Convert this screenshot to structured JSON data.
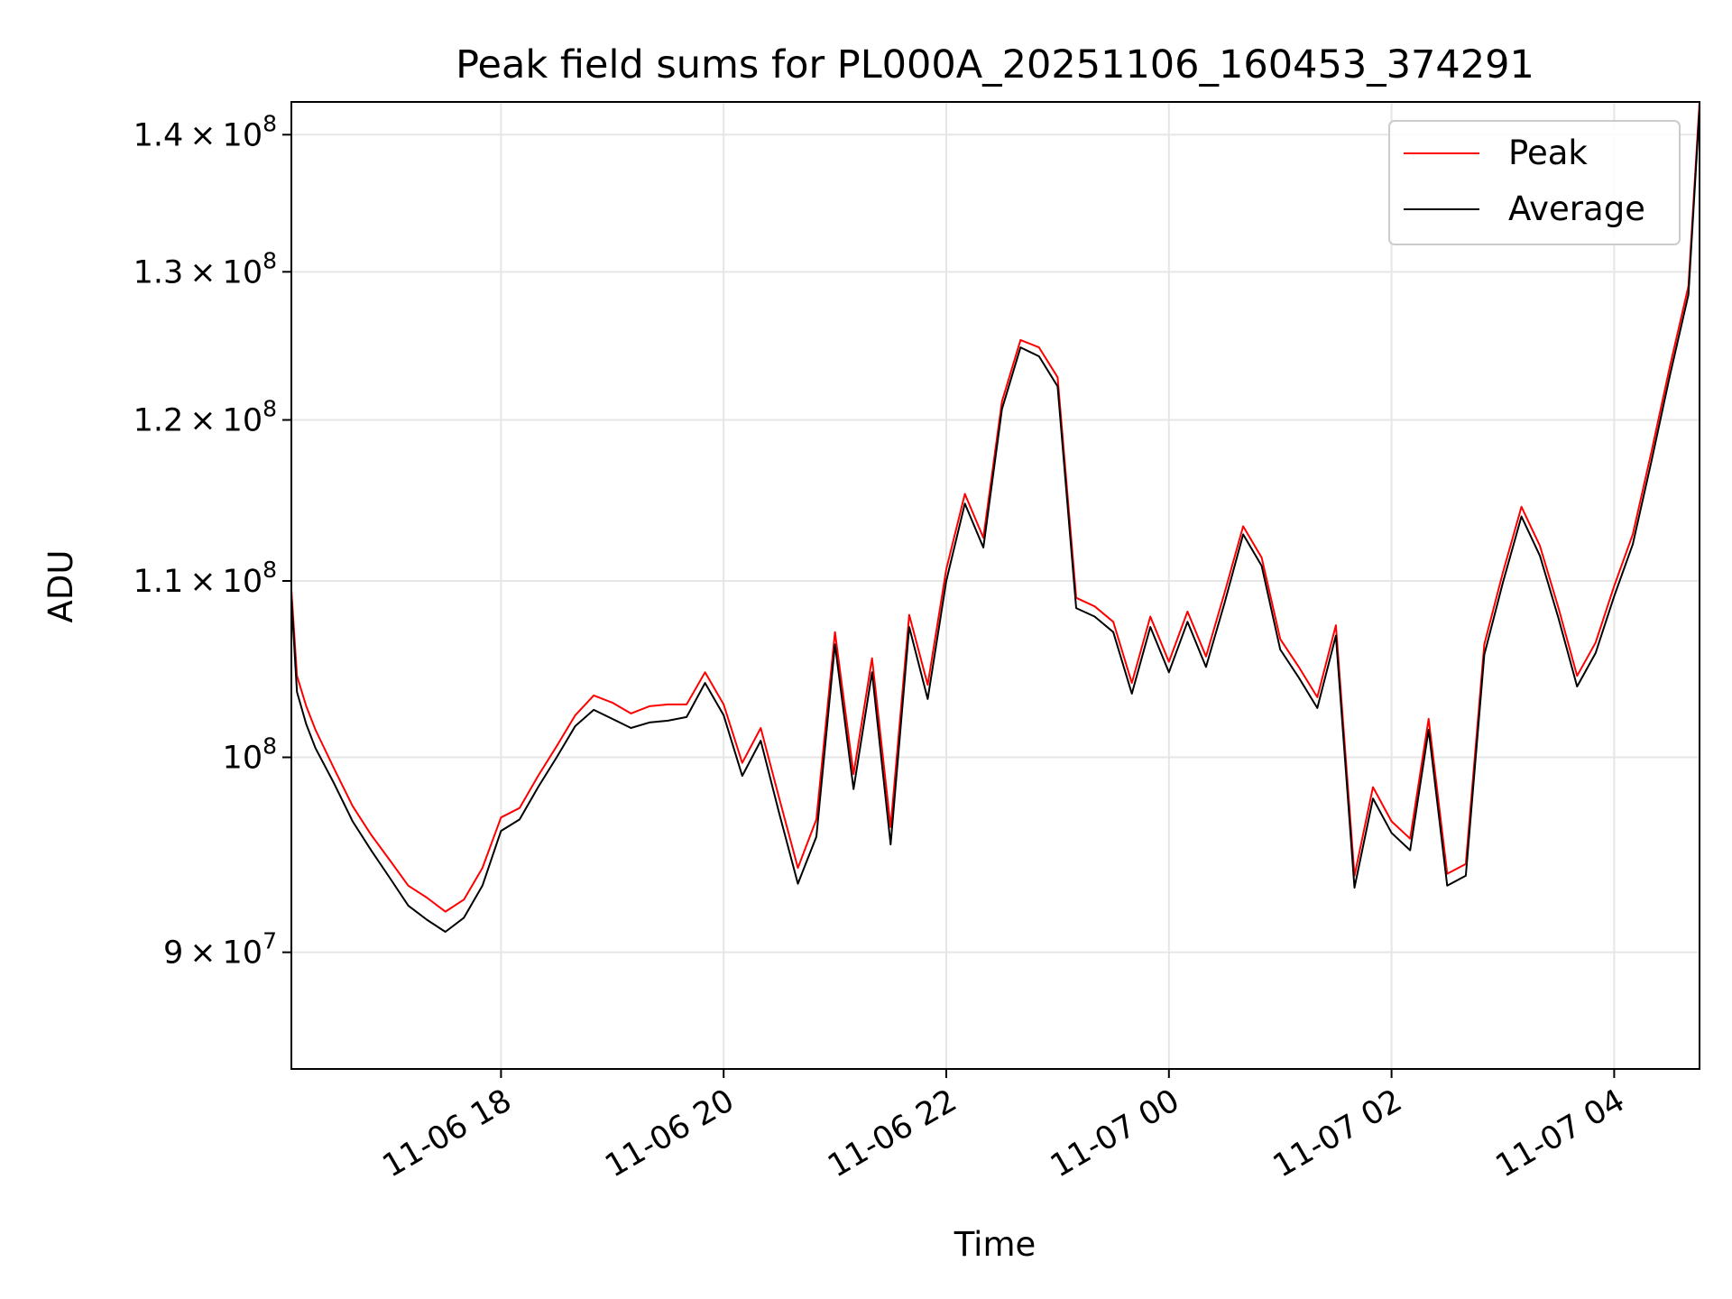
{
  "chart_data": {
    "type": "line",
    "title": "Peak field sums for PL000A_20251106_160453_374291",
    "xlabel": "Time",
    "ylabel": "ADU",
    "yscale": "log",
    "ylim": [
      84500000,
      142500000
    ],
    "xlim": [
      "2025-11-06T16:07",
      "2025-11-07T04:46"
    ],
    "grid": true,
    "legend_position": "top-right",
    "x_ticks": [
      {
        "t": "2025-11-06T18:00",
        "label": "11-06 18"
      },
      {
        "t": "2025-11-06T20:00",
        "label": "11-06 20"
      },
      {
        "t": "2025-11-06T22:00",
        "label": "11-06 22"
      },
      {
        "t": "2025-11-07T00:00",
        "label": "11-07 00"
      },
      {
        "t": "2025-11-07T02:00",
        "label": "11-07 02"
      },
      {
        "t": "2025-11-07T04:00",
        "label": "11-07 04"
      }
    ],
    "y_ticks": [
      {
        "value": 90000000,
        "mant": "9",
        "exp": "7"
      },
      {
        "value": 100000000,
        "mant": "",
        "exp": "8"
      },
      {
        "value": 110000000,
        "mant": "1.1",
        "exp": "8"
      },
      {
        "value": 120000000,
        "mant": "1.2",
        "exp": "8"
      },
      {
        "value": 130000000,
        "mant": "1.3",
        "exp": "8"
      },
      {
        "value": 140000000,
        "mant": "1.4",
        "exp": "8"
      }
    ],
    "series": [
      {
        "name": "Peak",
        "color": "#ff0000",
        "values": [
          [
            "2025-11-06T16:07",
            109.5
          ],
          [
            "2025-11-06T16:10",
            104.5
          ],
          [
            "2025-11-06T16:15",
            102.8
          ],
          [
            "2025-11-06T16:20",
            101.5
          ],
          [
            "2025-11-06T16:30",
            99.4
          ],
          [
            "2025-11-06T16:40",
            97.4
          ],
          [
            "2025-11-06T16:50",
            95.9
          ],
          [
            "2025-11-06T17:00",
            94.6
          ],
          [
            "2025-11-06T17:10",
            93.3
          ],
          [
            "2025-11-06T17:20",
            92.7
          ],
          [
            "2025-11-06T17:30",
            92.0
          ],
          [
            "2025-11-06T17:40",
            92.6
          ],
          [
            "2025-11-06T17:50",
            94.2
          ],
          [
            "2025-11-06T18:00",
            96.8
          ],
          [
            "2025-11-06T18:10",
            97.3
          ],
          [
            "2025-11-06T18:20",
            99.0
          ],
          [
            "2025-11-06T18:30",
            100.6
          ],
          [
            "2025-11-06T18:40",
            102.3
          ],
          [
            "2025-11-06T18:50",
            103.4
          ],
          [
            "2025-11-06T19:00",
            103.0
          ],
          [
            "2025-11-06T19:10",
            102.4
          ],
          [
            "2025-11-06T19:20",
            102.8
          ],
          [
            "2025-11-06T19:30",
            102.9
          ],
          [
            "2025-11-06T19:40",
            102.9
          ],
          [
            "2025-11-06T19:50",
            104.7
          ],
          [
            "2025-11-06T20:00",
            102.9
          ],
          [
            "2025-11-06T20:10",
            99.7
          ],
          [
            "2025-11-06T20:20",
            101.6
          ],
          [
            "2025-11-06T20:30",
            97.8
          ],
          [
            "2025-11-06T20:40",
            94.2
          ],
          [
            "2025-11-06T20:50",
            96.7
          ],
          [
            "2025-11-06T21:00",
            107.0
          ],
          [
            "2025-11-06T21:10",
            99.1
          ],
          [
            "2025-11-06T21:20",
            105.5
          ],
          [
            "2025-11-06T21:30",
            96.3
          ],
          [
            "2025-11-06T21:40",
            108.0
          ],
          [
            "2025-11-06T21:50",
            104.0
          ],
          [
            "2025-11-06T22:00",
            110.7
          ],
          [
            "2025-11-06T22:10",
            115.3
          ],
          [
            "2025-11-06T22:20",
            112.6
          ],
          [
            "2025-11-06T22:30",
            121.2
          ],
          [
            "2025-11-06T22:40",
            125.3
          ],
          [
            "2025-11-06T22:50",
            124.8
          ],
          [
            "2025-11-06T23:00",
            122.8
          ],
          [
            "2025-11-06T23:10",
            109.0
          ],
          [
            "2025-11-06T23:20",
            108.5
          ],
          [
            "2025-11-06T23:30",
            107.6
          ],
          [
            "2025-11-06T23:40",
            104.1
          ],
          [
            "2025-11-06T23:50",
            107.9
          ],
          [
            "2025-11-07T00:00",
            105.3
          ],
          [
            "2025-11-07T00:10",
            108.2
          ],
          [
            "2025-11-07T00:20",
            105.6
          ],
          [
            "2025-11-07T00:30",
            109.3
          ],
          [
            "2025-11-07T00:40",
            113.3
          ],
          [
            "2025-11-07T00:50",
            111.4
          ],
          [
            "2025-11-07T01:00",
            106.6
          ],
          [
            "2025-11-07T01:10",
            105.0
          ],
          [
            "2025-11-07T01:20",
            103.3
          ],
          [
            "2025-11-07T01:30",
            107.4
          ],
          [
            "2025-11-07T01:40",
            93.8
          ],
          [
            "2025-11-07T01:50",
            98.4
          ],
          [
            "2025-11-07T02:00",
            96.6
          ],
          [
            "2025-11-07T02:10",
            95.7
          ],
          [
            "2025-11-07T02:20",
            102.1
          ],
          [
            "2025-11-07T02:30",
            93.9
          ],
          [
            "2025-11-07T02:40",
            94.4
          ],
          [
            "2025-11-07T02:50",
            106.3
          ],
          [
            "2025-11-07T03:00",
            110.5
          ],
          [
            "2025-11-07T03:10",
            114.5
          ],
          [
            "2025-11-07T03:20",
            112.1
          ],
          [
            "2025-11-07T03:30",
            108.4
          ],
          [
            "2025-11-07T03:40",
            104.5
          ],
          [
            "2025-11-07T03:50",
            106.4
          ],
          [
            "2025-11-07T04:00",
            109.7
          ],
          [
            "2025-11-07T04:10",
            112.8
          ],
          [
            "2025-11-07T04:20",
            117.9
          ],
          [
            "2025-11-07T04:30",
            123.5
          ],
          [
            "2025-11-07T04:40",
            129.0
          ],
          [
            "2025-11-07T04:46",
            142.5
          ]
        ]
      },
      {
        "name": "Average",
        "color": "#000000",
        "values": [
          [
            "2025-11-06T16:07",
            109.0
          ],
          [
            "2025-11-06T16:10",
            103.6
          ],
          [
            "2025-11-06T16:15",
            101.8
          ],
          [
            "2025-11-06T16:20",
            100.5
          ],
          [
            "2025-11-06T16:30",
            98.6
          ],
          [
            "2025-11-06T16:40",
            96.6
          ],
          [
            "2025-11-06T16:50",
            95.1
          ],
          [
            "2025-11-06T17:00",
            93.7
          ],
          [
            "2025-11-06T17:10",
            92.3
          ],
          [
            "2025-11-06T17:20",
            91.6
          ],
          [
            "2025-11-06T17:30",
            91.0
          ],
          [
            "2025-11-06T17:40",
            91.7
          ],
          [
            "2025-11-06T17:50",
            93.3
          ],
          [
            "2025-11-06T18:00",
            96.1
          ],
          [
            "2025-11-06T18:10",
            96.7
          ],
          [
            "2025-11-06T18:20",
            98.4
          ],
          [
            "2025-11-06T18:30",
            100.0
          ],
          [
            "2025-11-06T18:40",
            101.7
          ],
          [
            "2025-11-06T18:50",
            102.6
          ],
          [
            "2025-11-06T19:00",
            102.1
          ],
          [
            "2025-11-06T19:10",
            101.6
          ],
          [
            "2025-11-06T19:20",
            101.9
          ],
          [
            "2025-11-06T19:30",
            102.0
          ],
          [
            "2025-11-06T19:40",
            102.2
          ],
          [
            "2025-11-06T19:50",
            104.1
          ],
          [
            "2025-11-06T20:00",
            102.3
          ],
          [
            "2025-11-06T20:10",
            99.0
          ],
          [
            "2025-11-06T20:20",
            100.9
          ],
          [
            "2025-11-06T20:30",
            97.0
          ],
          [
            "2025-11-06T20:40",
            93.4
          ],
          [
            "2025-11-06T20:50",
            95.8
          ],
          [
            "2025-11-06T21:00",
            106.3
          ],
          [
            "2025-11-06T21:10",
            98.3
          ],
          [
            "2025-11-06T21:20",
            104.7
          ],
          [
            "2025-11-06T21:30",
            95.4
          ],
          [
            "2025-11-06T21:40",
            107.3
          ],
          [
            "2025-11-06T21:50",
            103.2
          ],
          [
            "2025-11-06T22:00",
            110.0
          ],
          [
            "2025-11-06T22:10",
            114.7
          ],
          [
            "2025-11-06T22:20",
            112.0
          ],
          [
            "2025-11-06T22:30",
            120.7
          ],
          [
            "2025-11-06T22:40",
            124.8
          ],
          [
            "2025-11-06T22:50",
            124.2
          ],
          [
            "2025-11-06T23:00",
            122.2
          ],
          [
            "2025-11-06T23:10",
            108.4
          ],
          [
            "2025-11-06T23:20",
            107.9
          ],
          [
            "2025-11-06T23:30",
            107.0
          ],
          [
            "2025-11-06T23:40",
            103.5
          ],
          [
            "2025-11-06T23:50",
            107.3
          ],
          [
            "2025-11-07T00:00",
            104.7
          ],
          [
            "2025-11-07T00:10",
            107.6
          ],
          [
            "2025-11-07T00:20",
            105.0
          ],
          [
            "2025-11-07T00:30",
            108.7
          ],
          [
            "2025-11-07T00:40",
            112.8
          ],
          [
            "2025-11-07T00:50",
            110.9
          ],
          [
            "2025-11-07T01:00",
            106.0
          ],
          [
            "2025-11-07T01:10",
            104.4
          ],
          [
            "2025-11-07T01:20",
            102.7
          ],
          [
            "2025-11-07T01:30",
            106.8
          ],
          [
            "2025-11-07T01:40",
            93.2
          ],
          [
            "2025-11-07T01:50",
            97.8
          ],
          [
            "2025-11-07T02:00",
            96.0
          ],
          [
            "2025-11-07T02:10",
            95.1
          ],
          [
            "2025-11-07T02:20",
            101.5
          ],
          [
            "2025-11-07T02:30",
            93.3
          ],
          [
            "2025-11-07T02:40",
            93.8
          ],
          [
            "2025-11-07T02:50",
            105.7
          ],
          [
            "2025-11-07T03:00",
            109.9
          ],
          [
            "2025-11-07T03:10",
            113.9
          ],
          [
            "2025-11-07T03:20",
            111.5
          ],
          [
            "2025-11-07T03:30",
            107.8
          ],
          [
            "2025-11-07T03:40",
            103.9
          ],
          [
            "2025-11-07T03:50",
            105.8
          ],
          [
            "2025-11-07T04:00",
            109.1
          ],
          [
            "2025-11-07T04:10",
            112.2
          ],
          [
            "2025-11-07T04:20",
            117.3
          ],
          [
            "2025-11-07T04:30",
            122.9
          ],
          [
            "2025-11-07T04:40",
            128.4
          ],
          [
            "2025-11-07T04:46",
            142.0
          ]
        ]
      }
    ]
  }
}
